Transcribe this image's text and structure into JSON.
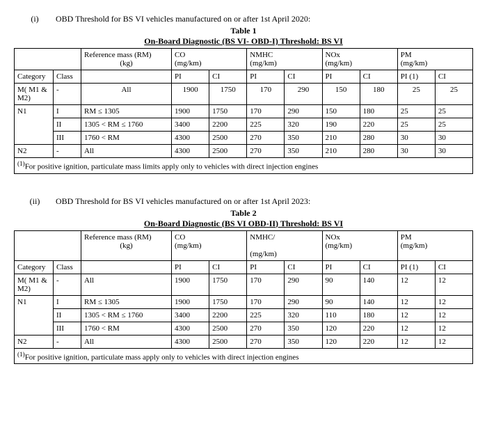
{
  "tables": [
    {
      "roman": "(i)",
      "heading": "OBD Threshold for BS VI vehicles manufactured on or after 1st April 2020:",
      "table_label": "Table 1",
      "title": "On-Board Diagnostic (BS VI- OBD-I) Threshold: BS VI",
      "col_rm": "Reference mass (RM)",
      "col_rm_unit": "(kg)",
      "pollutants": [
        "CO",
        "NMHC",
        "NOx",
        "PM"
      ],
      "unit": "(mg/km)",
      "cat_label": "Category",
      "class_label": "Class",
      "pi_label": "PI",
      "ci_label": "CI",
      "pi_note": "PI (1)",
      "rows": [
        {
          "cat": "M( M1 & M2)",
          "class": "-",
          "rm": "All",
          "vals": [
            "1900",
            "1750",
            "170",
            "290",
            "150",
            "180",
            "25",
            "25"
          ],
          "rm_center": true
        },
        {
          "cat": "N1",
          "class": "I",
          "rm": "RM ≤ 1305",
          "vals": [
            "1900",
            "1750",
            "170",
            "290",
            "150",
            "180",
            "25",
            "25"
          ],
          "rowspan": 3
        },
        {
          "class": "II",
          "rm": "1305 < RM ≤ 1760",
          "vals": [
            "3400",
            "2200",
            "225",
            "320",
            "190",
            "220",
            "25",
            "25"
          ]
        },
        {
          "class": "III",
          "rm": "1760 < RM",
          "vals": [
            "4300",
            "2500",
            "270",
            "350",
            "210",
            "280",
            "30",
            "30"
          ]
        },
        {
          "cat": "N2",
          "class": "-",
          "rm": "All",
          "vals": [
            "4300",
            "2500",
            "270",
            "350",
            "210",
            "280",
            "30",
            "30"
          ]
        }
      ],
      "footnote": "(1)For positive ignition, particulate mass limits apply only to vehicles with direct injection engines"
    },
    {
      "roman": "(ii)",
      "heading": "OBD Threshold for BS VI vehicles manufactured on or after 1st April 2023:",
      "table_label": "Table 2",
      "title": "On-Board Diagnostic (BS VI OBD-II) Threshold: BS VI",
      "col_rm": "Reference mass (RM)",
      "col_rm_unit": "(kg)",
      "pollutants": [
        "CO",
        "NMHC/",
        "NOx",
        "PM"
      ],
      "unit": "(mg/km)",
      "cat_label": "Category",
      "class_label": "Class",
      "pi_label": "PI",
      "ci_label": "CI",
      "pi_note": "PI (1)",
      "rows": [
        {
          "cat": "M( M1 & M2)",
          "class": "-",
          "rm": "All",
          "vals": [
            "1900",
            "1750",
            "170",
            "290",
            "90",
            "140",
            "12",
            "12"
          ]
        },
        {
          "cat": "N1",
          "class": "I",
          "rm": "RM ≤ 1305",
          "vals": [
            "1900",
            "1750",
            "170",
            "290",
            "90",
            "140",
            "12",
            "12"
          ],
          "rowspan": 3
        },
        {
          "class": "II",
          "rm": "1305 < RM ≤ 1760",
          "vals": [
            "3400",
            "2200",
            "225",
            "320",
            "110",
            "180",
            "12",
            "12"
          ]
        },
        {
          "class": "III",
          "rm": "1760 < RM",
          "vals": [
            "4300",
            "2500",
            "270",
            "350",
            "120",
            "220",
            "12",
            "12"
          ]
        },
        {
          "cat": "N2",
          "class": "-",
          "rm": "All",
          "vals": [
            "4300",
            "2500",
            "270",
            "350",
            "120",
            "220",
            "12",
            "12"
          ]
        }
      ],
      "footnote": "(1)For positive ignition, particulate mass apply only to vehicles with direct injection engines"
    }
  ]
}
